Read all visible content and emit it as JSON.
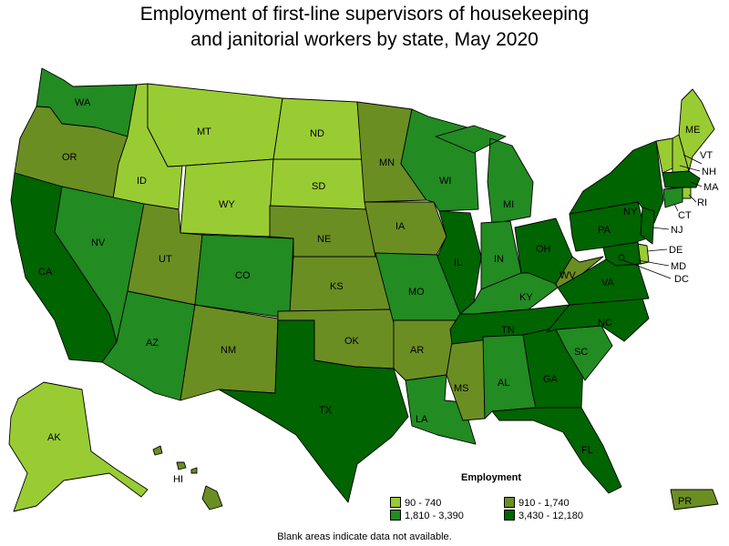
{
  "title_line1": "Employment of first-line supervisors of housekeeping",
  "title_line2": "and janitorial workers by state, May 2020",
  "legend": {
    "title": "Employment",
    "bins": [
      {
        "key": "b1",
        "label": "90 - 740",
        "color": "#99cc33"
      },
      {
        "key": "b2",
        "label": "910 - 1,740",
        "color": "#6b8e23"
      },
      {
        "key": "b3",
        "label": "1,810 - 3,390",
        "color": "#228b22"
      },
      {
        "key": "b4",
        "label": "3,430 - 12,180",
        "color": "#006400"
      }
    ]
  },
  "footnote": "Blank areas indicate data not available.",
  "states": [
    {
      "abbr": "WA",
      "bin": "b3"
    },
    {
      "abbr": "OR",
      "bin": "b2"
    },
    {
      "abbr": "CA",
      "bin": "b4"
    },
    {
      "abbr": "ID",
      "bin": "b1"
    },
    {
      "abbr": "NV",
      "bin": "b3"
    },
    {
      "abbr": "MT",
      "bin": "b1"
    },
    {
      "abbr": "WY",
      "bin": "b1"
    },
    {
      "abbr": "UT",
      "bin": "b2"
    },
    {
      "abbr": "AZ",
      "bin": "b3"
    },
    {
      "abbr": "CO",
      "bin": "b3"
    },
    {
      "abbr": "NM",
      "bin": "b2"
    },
    {
      "abbr": "ND",
      "bin": "b1"
    },
    {
      "abbr": "SD",
      "bin": "b1"
    },
    {
      "abbr": "NE",
      "bin": "b2"
    },
    {
      "abbr": "KS",
      "bin": "b2"
    },
    {
      "abbr": "OK",
      "bin": "b2"
    },
    {
      "abbr": "TX",
      "bin": "b4"
    },
    {
      "abbr": "MN",
      "bin": "b2"
    },
    {
      "abbr": "IA",
      "bin": "b2"
    },
    {
      "abbr": "MO",
      "bin": "b3"
    },
    {
      "abbr": "AR",
      "bin": "b2"
    },
    {
      "abbr": "LA",
      "bin": "b3"
    },
    {
      "abbr": "WI",
      "bin": "b3"
    },
    {
      "abbr": "IL",
      "bin": "b4"
    },
    {
      "abbr": "MS",
      "bin": "b2"
    },
    {
      "abbr": "MI",
      "bin": "b3"
    },
    {
      "abbr": "IN",
      "bin": "b3"
    },
    {
      "abbr": "KY",
      "bin": "b3"
    },
    {
      "abbr": "TN",
      "bin": "b4"
    },
    {
      "abbr": "AL",
      "bin": "b3"
    },
    {
      "abbr": "OH",
      "bin": "b4"
    },
    {
      "abbr": "GA",
      "bin": "b4"
    },
    {
      "abbr": "FL",
      "bin": "b4"
    },
    {
      "abbr": "SC",
      "bin": "b3"
    },
    {
      "abbr": "NC",
      "bin": "b4"
    },
    {
      "abbr": "VA",
      "bin": "b4"
    },
    {
      "abbr": "WV",
      "bin": "b2"
    },
    {
      "abbr": "PA",
      "bin": "b4"
    },
    {
      "abbr": "NY",
      "bin": "b4"
    },
    {
      "abbr": "VT",
      "bin": "b1"
    },
    {
      "abbr": "NH",
      "bin": "b1"
    },
    {
      "abbr": "ME",
      "bin": "b1"
    },
    {
      "abbr": "MA",
      "bin": "b4"
    },
    {
      "abbr": "RI",
      "bin": "b1"
    },
    {
      "abbr": "CT",
      "bin": "b3"
    },
    {
      "abbr": "NJ",
      "bin": "b4"
    },
    {
      "abbr": "DE",
      "bin": "b1"
    },
    {
      "abbr": "MD",
      "bin": "b4"
    },
    {
      "abbr": "DC",
      "bin": "b4"
    },
    {
      "abbr": "AK",
      "bin": "b1"
    },
    {
      "abbr": "HI",
      "bin": "b2"
    },
    {
      "abbr": "PR",
      "bin": "b2"
    }
  ]
}
